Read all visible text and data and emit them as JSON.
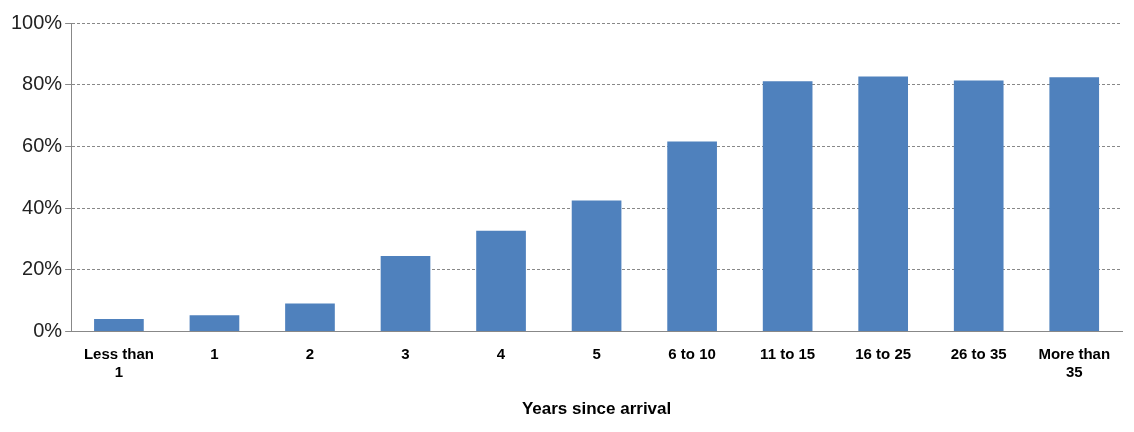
{
  "chart_data": {
    "type": "bar",
    "xlabel": "Years since arrival",
    "categories": [
      "Less than 1",
      "1",
      "2",
      "3",
      "4",
      "5",
      "6 to 10",
      "11 to 15",
      "16 to 25",
      "26 to 35",
      "More than 35"
    ],
    "values": [
      4.1,
      5.3,
      9.1,
      24.5,
      32.7,
      42.5,
      61.6,
      81.1,
      82.7,
      81.4,
      82.4
    ],
    "color": "#4f81bd",
    "ylim": [
      0,
      100
    ],
    "yticks": [
      {
        "value": 0,
        "label": "0%"
      },
      {
        "value": 20,
        "label": "20%"
      },
      {
        "value": 40,
        "label": "40%"
      },
      {
        "value": 60,
        "label": "60%"
      },
      {
        "value": 80,
        "label": "80%"
      },
      {
        "value": 100,
        "label": "100%"
      }
    ],
    "grid": "y",
    "legend": false
  }
}
